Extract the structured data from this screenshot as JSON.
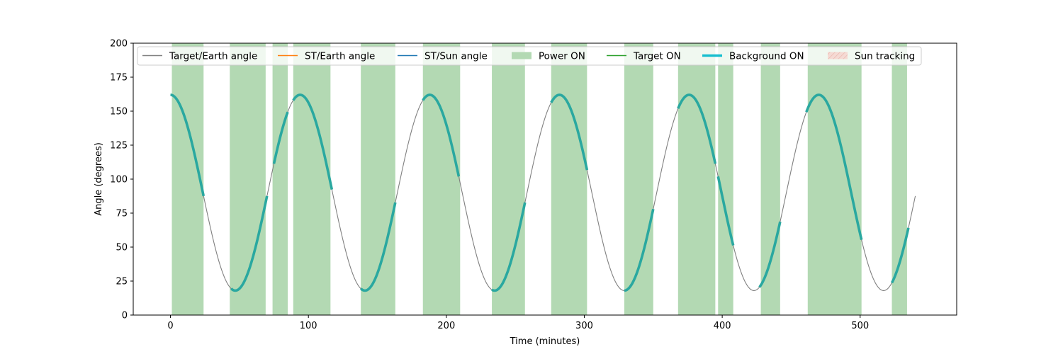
{
  "chart_data": {
    "type": "line",
    "title": "",
    "xlabel": "Time (minutes)",
    "ylabel": "Angle (degrees)",
    "xlim": [
      -27,
      570
    ],
    "ylim": [
      0,
      200
    ],
    "xticks": [
      0,
      100,
      200,
      300,
      400,
      500
    ],
    "yticks": [
      0,
      25,
      50,
      75,
      100,
      125,
      150,
      175,
      200
    ],
    "grid": false,
    "legend_position": "top",
    "legend": [
      {
        "label": "Target/Earth angle",
        "kind": "line",
        "color": "#808080"
      },
      {
        "label": "ST/Earth angle",
        "kind": "line",
        "color": "#ff7f0e"
      },
      {
        "label": "ST/Sun angle",
        "kind": "line",
        "color": "#1f77b4"
      },
      {
        "label": "Power ON",
        "kind": "patch",
        "color": "#b3d9b3"
      },
      {
        "label": "Target ON",
        "kind": "line",
        "color": "#2ca02c"
      },
      {
        "label": "Background ON",
        "kind": "thickline",
        "color": "#17becf"
      },
      {
        "label": "Sun tracking",
        "kind": "hatch",
        "color": "#f4c7c0"
      }
    ],
    "series": [
      {
        "name": "Target/Earth angle",
        "color": "#808080",
        "function": {
          "mean": 90,
          "amplitude": 72,
          "period_minutes": 94,
          "phase_minutes": 0,
          "x_start": 0,
          "x_end": 540,
          "step": 1
        }
      },
      {
        "name": "Background ON",
        "color": "#2aa8a0",
        "intervals": [
          [
            0,
            24
          ],
          [
            44,
            70
          ],
          [
            75,
            85
          ],
          [
            89,
            117
          ],
          [
            138,
            163
          ],
          [
            183,
            209
          ],
          [
            233,
            257
          ],
          [
            276,
            302
          ],
          [
            329,
            350
          ],
          [
            368,
            395
          ],
          [
            397,
            408
          ],
          [
            427,
            442
          ],
          [
            461,
            501
          ],
          [
            523,
            535
          ]
        ]
      }
    ],
    "power_on_intervals": [
      [
        1,
        24
      ],
      [
        43,
        69
      ],
      [
        74,
        85
      ],
      [
        89,
        116
      ],
      [
        138,
        163
      ],
      [
        183,
        210
      ],
      [
        233,
        257
      ],
      [
        276,
        302
      ],
      [
        329,
        350
      ],
      [
        368,
        395
      ],
      [
        397,
        408
      ],
      [
        428,
        442
      ],
      [
        462,
        501
      ],
      [
        523,
        534
      ]
    ],
    "colors": {
      "power_on": "#b3d9b3",
      "target_earth": "#808080",
      "background_on": "#2aa8a0"
    }
  }
}
